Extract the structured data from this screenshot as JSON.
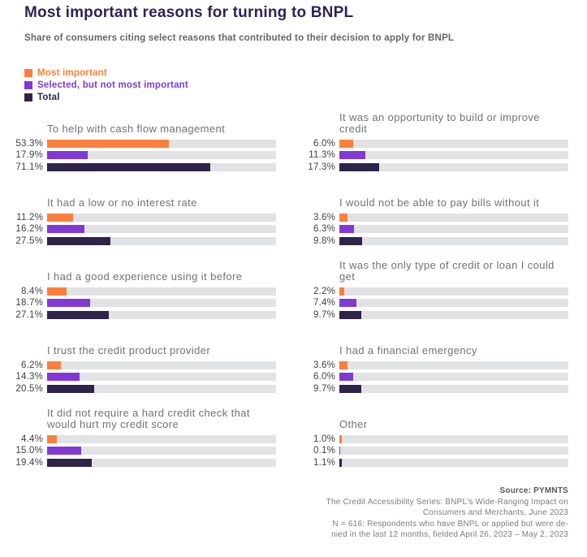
{
  "header": {
    "title": "Most important reasons for turning to BNPL",
    "subtitle": "Share of consumers citing select reasons that contributed to their decision to apply for BNPL"
  },
  "legend": {
    "items": [
      {
        "key": "most-important",
        "label": "Most important",
        "color": "#F9803C"
      },
      {
        "key": "selected-not-most-important",
        "label": "Selected, but not most important",
        "color": "#8139D6"
      },
      {
        "key": "total",
        "label": "Total",
        "color": "#2F2349"
      }
    ]
  },
  "chart_data": {
    "type": "bar",
    "orientation": "horizontal",
    "title": "Most important reasons for turning to BNPL",
    "subtitle": "Share of consumers citing select reasons that contributed to their decision to apply for BNPL",
    "unit": "%",
    "x_max": 100,
    "track_color": "#E1E2E4",
    "colors": [
      "#F9803C",
      "#8139D6",
      "#2F2349"
    ],
    "series": [
      "Most important",
      "Selected, but not most important",
      "Total"
    ],
    "layout": "two-column small multiples, column-major order, 5 rows",
    "groups": [
      {
        "label": "To help with cash flow management",
        "values": [
          53.3,
          17.9,
          71.1
        ]
      },
      {
        "label": "It had a low or no interest rate",
        "values": [
          11.2,
          16.2,
          27.5
        ]
      },
      {
        "label": "I had a good experience using it before",
        "values": [
          8.4,
          18.7,
          27.1
        ]
      },
      {
        "label": "I trust the credit product provider",
        "values": [
          6.2,
          14.3,
          20.5
        ]
      },
      {
        "label": "It did not require a hard credit check that would hurt my credit score",
        "values": [
          4.4,
          15.0,
          19.4
        ]
      },
      {
        "label": "It was an opportunity to build or improve credit",
        "values": [
          6.0,
          11.3,
          17.3
        ]
      },
      {
        "label": "I would not be able to pay bills without it",
        "values": [
          3.6,
          6.3,
          9.8
        ]
      },
      {
        "label": "It was the only type of credit or loan I could get",
        "values": [
          2.2,
          7.4,
          9.7
        ]
      },
      {
        "label": "I had a financial emergency",
        "values": [
          3.6,
          6.0,
          9.7
        ]
      },
      {
        "label": "Other",
        "values": [
          1.0,
          0.1,
          1.1
        ]
      }
    ]
  },
  "footer": {
    "source": "Source: PYMNTS",
    "lines": [
      "The Credit Accessibility Series: BNPL's Wide-Ranging Impact on",
      "Consumers and Merchants, June 2023",
      "N = 616: Respondents who have BNPL or applied but were de-",
      "nied in the last 12 months, fielded April 26, 2023 – May 2, 2023"
    ]
  }
}
